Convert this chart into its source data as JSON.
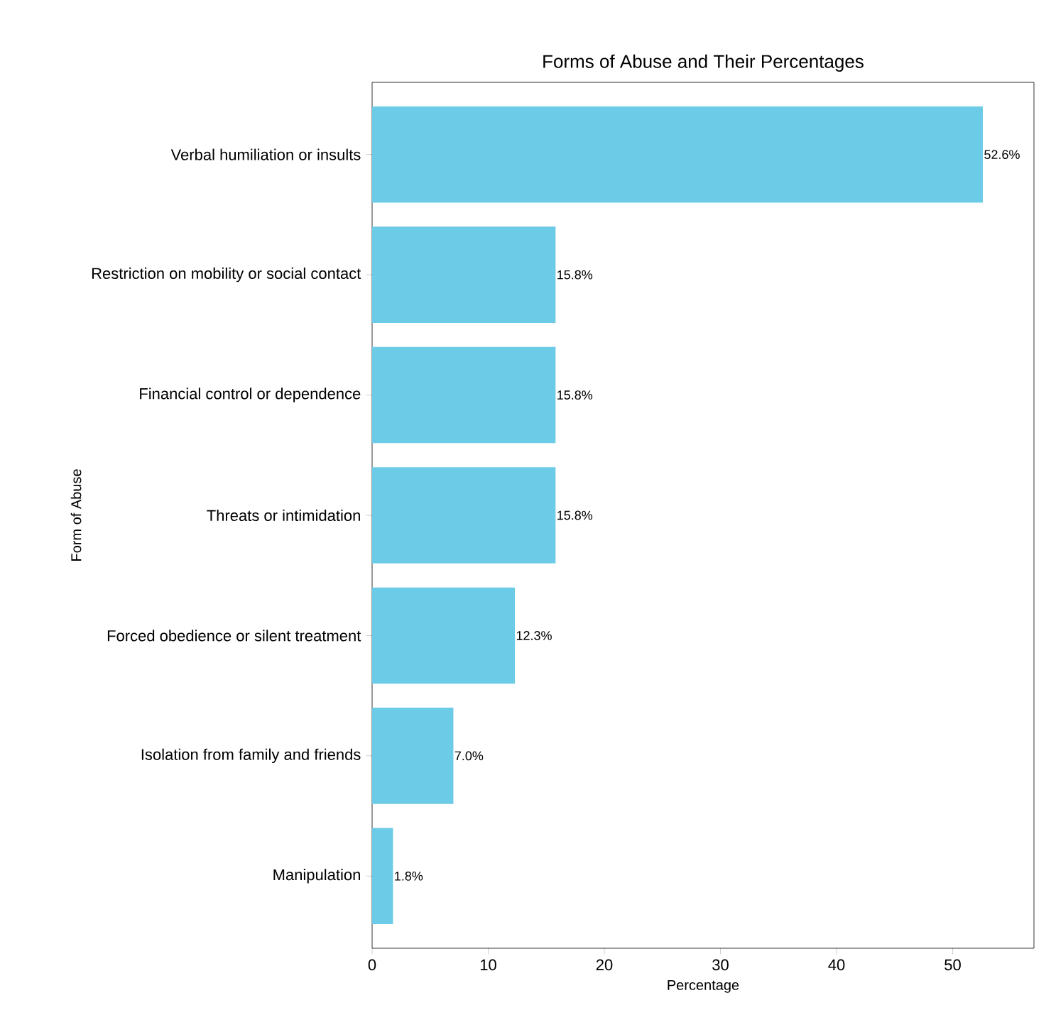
{
  "chart_data": {
    "type": "bar",
    "orientation": "horizontal",
    "title": "Forms of Abuse and Their Percentages",
    "xlabel": "Percentage",
    "ylabel": "Form of Abuse",
    "categories": [
      "Verbal humiliation or insults",
      "Restriction on mobility or social contact",
      "Financial control or dependence",
      "Threats or intimidation",
      "Forced obedience or silent treatment",
      "Isolation from family and friends",
      "Manipulation"
    ],
    "values": [
      52.6,
      15.8,
      15.8,
      15.8,
      12.3,
      7.0,
      1.8
    ],
    "value_labels": [
      "52.6%",
      "15.8%",
      "15.8%",
      "15.8%",
      "12.3%",
      "7.0%",
      "1.8%"
    ],
    "color": "#6ccbe6",
    "xlim": [
      0,
      57
    ],
    "xticks": [
      0,
      10,
      20,
      30,
      40,
      50
    ],
    "grid": false
  }
}
